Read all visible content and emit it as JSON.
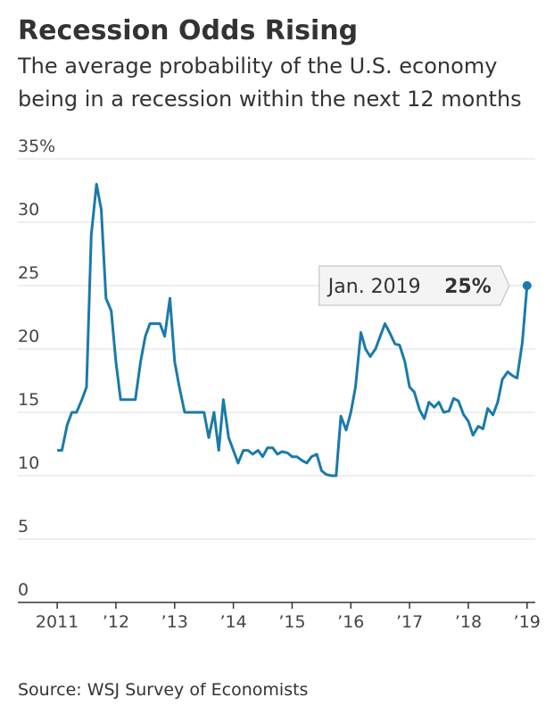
{
  "chart_data": {
    "type": "line",
    "title": "Recession Odds Rising",
    "subtitle": [
      "The average probability of the U.S. economy",
      "being in a recession within the next 12 months"
    ],
    "source": "Source: WSJ Survey of Economists",
    "annotation": "Jan. 2019",
    "color": "#1a7aab",
    "grid": true,
    "x": [
      2011.0,
      2011.08,
      2011.17,
      2011.25,
      2011.33,
      2011.42,
      2011.5,
      2011.58,
      2011.67,
      2011.75,
      2011.83,
      2011.92,
      2012.0,
      2012.08,
      2012.17,
      2012.25,
      2012.33,
      2012.42,
      2012.5,
      2012.58,
      2012.67,
      2012.75,
      2012.83,
      2012.92,
      2013.0,
      2013.08,
      2013.17,
      2013.25,
      2013.33,
      2013.42,
      2013.5,
      2013.58,
      2013.67,
      2013.75,
      2013.83,
      2013.92,
      2014.0,
      2014.08,
      2014.17,
      2014.25,
      2014.33,
      2014.42,
      2014.5,
      2014.58,
      2014.67,
      2014.75,
      2014.83,
      2014.92,
      2015.0,
      2015.08,
      2015.17,
      2015.25,
      2015.33,
      2015.42,
      2015.5,
      2015.58,
      2015.67,
      2015.75,
      2015.83,
      2015.92,
      2016.0,
      2016.08,
      2016.17,
      2016.25,
      2016.33,
      2016.42,
      2016.5,
      2016.58,
      2016.67,
      2016.75,
      2016.83,
      2016.92,
      2017.0,
      2017.08,
      2017.17,
      2017.25,
      2017.33,
      2017.42,
      2017.5,
      2017.58,
      2017.67,
      2017.75,
      2017.83,
      2017.92,
      2018.0,
      2018.08,
      2018.17,
      2018.25,
      2018.33,
      2018.42,
      2018.5,
      2018.58,
      2018.67,
      2018.75,
      2018.83,
      2018.92,
      2019.0
    ],
    "values": [
      12,
      12,
      14,
      15,
      15,
      16,
      17,
      29,
      33,
      31,
      24,
      23,
      19,
      16,
      16,
      16,
      16,
      19,
      21,
      22,
      22,
      22,
      21,
      24,
      19,
      17,
      15,
      15,
      15,
      15,
      15,
      13,
      15,
      12,
      16,
      13,
      12,
      11,
      12,
      12,
      11.7,
      12,
      11.5,
      12.2,
      12.2,
      11.7,
      11.9,
      11.8,
      11.5,
      11.5,
      11.2,
      11,
      11.5,
      11.7,
      10.4,
      10.1,
      10,
      10,
      14.7,
      13.6,
      15,
      17,
      21.3,
      20,
      19.4,
      20,
      21,
      22,
      21.2,
      20.4,
      20.3,
      19,
      17,
      16.6,
      15.2,
      14.5,
      15.8,
      15.4,
      15.8,
      15,
      15.1,
      16.1,
      15.9,
      14.8,
      14.3,
      13.2,
      13.9,
      13.7,
      15.3,
      14.8,
      15.8,
      17.6,
      18.2,
      17.9,
      17.7,
      20.5,
      25
    ],
    "value_labels": [
      null,
      null,
      null,
      null,
      null,
      null,
      null,
      null,
      null,
      null,
      null,
      null,
      null,
      null,
      null,
      null,
      null,
      null,
      null,
      null,
      null,
      null,
      null,
      null,
      null,
      null,
      null,
      null,
      null,
      null,
      null,
      null,
      null,
      null,
      null,
      null,
      null,
      null,
      null,
      null,
      null,
      null,
      null,
      null,
      null,
      null,
      null,
      null,
      null,
      null,
      null,
      null,
      null,
      null,
      null,
      null,
      null,
      null,
      null,
      null,
      null,
      null,
      null,
      null,
      null,
      null,
      null,
      null,
      null,
      null,
      null,
      null,
      null,
      null,
      null,
      null,
      null,
      null,
      null,
      null,
      null,
      null,
      null,
      null,
      null,
      null,
      null,
      null,
      null,
      null,
      null,
      null,
      null,
      null,
      null,
      null,
      "25%"
    ],
    "xlim": [
      2010.33,
      2019.14
    ],
    "xticks": [
      {
        "value": 2011,
        "label": "2011"
      },
      {
        "value": 2012,
        "label": "’12"
      },
      {
        "value": 2013,
        "label": "’13"
      },
      {
        "value": 2014,
        "label": "’14"
      },
      {
        "value": 2015,
        "label": "’15"
      },
      {
        "value": 2016,
        "label": "’16"
      },
      {
        "value": 2017,
        "label": "’17"
      },
      {
        "value": 2018,
        "label": "’18"
      },
      {
        "value": 2019,
        "label": "’19"
      }
    ],
    "ylim": [
      0,
      35
    ],
    "yticks": [
      0,
      5,
      10,
      15,
      20,
      25,
      30,
      {
        "value": 35,
        "label": "35%"
      }
    ]
  }
}
